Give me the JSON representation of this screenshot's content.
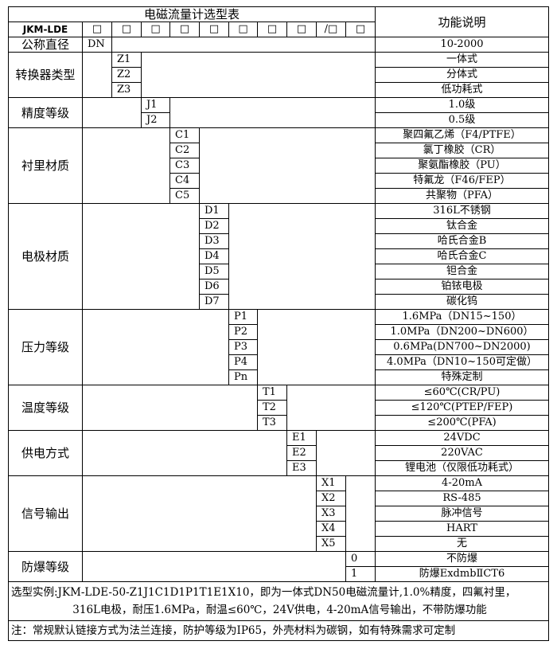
{
  "title": "电磁流量计选型表",
  "function_header": "功能说明",
  "model": "JKM-LDE",
  "code_boxes": [
    "□",
    "□",
    "□",
    "□",
    "□",
    "□",
    "□",
    "□",
    "/□",
    "□"
  ],
  "groups": [
    {
      "label": "公称直径",
      "col": 1,
      "codes": [
        "DN"
      ],
      "descs": [
        "10-2000"
      ]
    },
    {
      "label": "转换器类型",
      "col": 2,
      "codes": [
        "Z1",
        "Z2",
        "Z3"
      ],
      "descs": [
        "一体式",
        "分体式",
        "低功耗式"
      ]
    },
    {
      "label": "精度等级",
      "col": 3,
      "codes": [
        "J1",
        "J2"
      ],
      "descs": [
        "1.0级",
        "0.5级"
      ]
    },
    {
      "label": "衬里材质",
      "col": 4,
      "codes": [
        "C1",
        "C2",
        "C3",
        "C4",
        "C5"
      ],
      "descs": [
        "聚四氟乙烯（F4/PTFE）",
        "氯丁橡胶（CR）",
        "聚氨酯橡胶（PU）",
        "特氟龙（F46/FEP）",
        "共聚物（PFA）"
      ]
    },
    {
      "label": "电极材质",
      "col": 5,
      "codes": [
        "D1",
        "D2",
        "D3",
        "D4",
        "D5",
        "D6",
        "D7"
      ],
      "descs": [
        "316L不锈钢",
        "钛合金",
        "哈氏合金B",
        "哈氏合金C",
        "钽合金",
        "铂铱电极",
        "碳化钨"
      ]
    },
    {
      "label": "压力等级",
      "col": 6,
      "codes": [
        "P1",
        "P2",
        "P3",
        "P4",
        "Pn"
      ],
      "descs": [
        "1.6MPa（DN15~150）",
        "1.0MPa（DN200~DN600）",
        "0.6MPa(DN700~DN2000)",
        "4.0MPa（DN10~150可定做）",
        "特殊定制"
      ]
    },
    {
      "label": "温度等级",
      "col": 7,
      "codes": [
        "T1",
        "T2",
        "T3"
      ],
      "descs": [
        "≤60℃(CR/PU)",
        "≤120℃(PTEP/FEP)",
        "≤200℃(PFA)"
      ]
    },
    {
      "label": "供电方式",
      "col": 8,
      "codes": [
        "E1",
        "E2",
        "E3"
      ],
      "descs": [
        "24VDC",
        "220VAC",
        "锂电池（仅限低功耗式）"
      ]
    },
    {
      "label": "信号输出",
      "col": 9,
      "codes": [
        "X1",
        "X2",
        "X3",
        "X4",
        "X5"
      ],
      "descs": [
        "4-20mA",
        "RS-485",
        "脉冲信号",
        "HART",
        "无"
      ]
    },
    {
      "label": "防爆等级",
      "col": 10,
      "codes": [
        "0",
        "1"
      ],
      "descs": [
        "不防爆",
        "防爆ExdmbⅡCT6"
      ]
    }
  ],
  "example_line1": "选型实例:JKM-LDE-50-Z1J1C1D1P1T1E1X10，即为一体式DN50电磁流量计,1.0%精度，四氟衬里，",
  "example_line2": "316L电极，耐压1.6MPa，耐温≤60℃，24V供电，4-20mA信号输出，不带防爆功能",
  "note": "注：常规默认链接方式为法兰连接，防护等级为IP65，外壳材料为碳钢，如有特殊需求可定制"
}
